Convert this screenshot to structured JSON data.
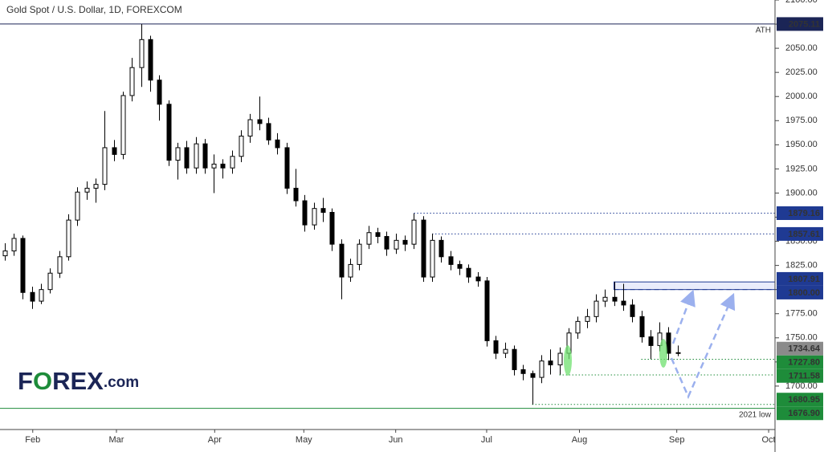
{
  "chart_data": {
    "type": "candlestick",
    "title": "Gold Spot / U.S. Dollar, 1D, FOREXCOM",
    "logo": [
      "F",
      "O",
      "REX",
      ".com"
    ],
    "up_color": "#ffffff",
    "down_color": "#000000",
    "ohlc": [
      [
        1835,
        1848,
        1830,
        1840
      ],
      [
        1840,
        1858,
        1835,
        1853
      ],
      [
        1853,
        1856,
        1790,
        1797
      ],
      [
        1797,
        1803,
        1780,
        1788
      ],
      [
        1788,
        1806,
        1785,
        1800
      ],
      [
        1800,
        1822,
        1796,
        1817
      ],
      [
        1817,
        1840,
        1812,
        1834
      ],
      [
        1834,
        1878,
        1830,
        1872
      ],
      [
        1872,
        1906,
        1866,
        1901
      ],
      [
        1901,
        1912,
        1893,
        1905
      ],
      [
        1905,
        1915,
        1890,
        1909
      ],
      [
        1909,
        1985,
        1903,
        1947
      ],
      [
        1947,
        1955,
        1933,
        1940
      ],
      [
        1940,
        2005,
        1935,
        2001
      ],
      [
        2001,
        2040,
        1995,
        2030
      ],
      [
        2030,
        2075,
        2010,
        2059
      ],
      [
        2059,
        2063,
        2005,
        2017
      ],
      [
        2017,
        2022,
        1975,
        1992
      ],
      [
        1992,
        1996,
        1928,
        1934
      ],
      [
        1934,
        1952,
        1914,
        1947
      ],
      [
        1947,
        1954,
        1920,
        1926
      ],
      [
        1926,
        1958,
        1920,
        1951
      ],
      [
        1951,
        1956,
        1920,
        1926
      ],
      [
        1926,
        1940,
        1900,
        1930
      ],
      [
        1930,
        1935,
        1915,
        1926
      ],
      [
        1926,
        1944,
        1920,
        1938
      ],
      [
        1938,
        1965,
        1932,
        1959
      ],
      [
        1959,
        1982,
        1952,
        1976
      ],
      [
        1976,
        2000,
        1965,
        1972
      ],
      [
        1972,
        1978,
        1950,
        1955
      ],
      [
        1955,
        1962,
        1940,
        1947
      ],
      [
        1947,
        1952,
        1899,
        1905
      ],
      [
        1905,
        1925,
        1886,
        1892
      ],
      [
        1892,
        1898,
        1860,
        1867
      ],
      [
        1867,
        1890,
        1862,
        1884
      ],
      [
        1884,
        1895,
        1870,
        1880
      ],
      [
        1880,
        1884,
        1840,
        1847
      ],
      [
        1847,
        1852,
        1790,
        1813
      ],
      [
        1813,
        1832,
        1808,
        1826
      ],
      [
        1826,
        1852,
        1820,
        1847
      ],
      [
        1847,
        1866,
        1842,
        1859
      ],
      [
        1859,
        1864,
        1848,
        1855
      ],
      [
        1855,
        1860,
        1835,
        1842
      ],
      [
        1842,
        1858,
        1837,
        1851
      ],
      [
        1851,
        1856,
        1840,
        1847
      ],
      [
        1847,
        1879,
        1842,
        1872
      ],
      [
        1872,
        1876,
        1808,
        1813
      ],
      [
        1813,
        1858,
        1808,
        1851
      ],
      [
        1851,
        1855,
        1828,
        1834
      ],
      [
        1834,
        1840,
        1820,
        1826
      ],
      [
        1826,
        1830,
        1815,
        1822
      ],
      [
        1822,
        1826,
        1807,
        1813
      ],
      [
        1813,
        1818,
        1803,
        1809
      ],
      [
        1809,
        1813,
        1741,
        1747
      ],
      [
        1747,
        1752,
        1728,
        1734
      ],
      [
        1734,
        1745,
        1729,
        1738
      ],
      [
        1738,
        1742,
        1711,
        1717
      ],
      [
        1717,
        1722,
        1706,
        1713
      ],
      [
        1713,
        1716,
        1681,
        1709
      ],
      [
        1709,
        1732,
        1703,
        1726
      ],
      [
        1726,
        1738,
        1712,
        1722
      ],
      [
        1722,
        1740,
        1712,
        1734
      ],
      [
        1734,
        1760,
        1728,
        1755
      ],
      [
        1755,
        1772,
        1749,
        1767
      ],
      [
        1767,
        1780,
        1760,
        1772
      ],
      [
        1772,
        1795,
        1766,
        1788
      ],
      [
        1788,
        1800,
        1782,
        1792
      ],
      [
        1792,
        1808,
        1783,
        1788
      ],
      [
        1788,
        1806,
        1778,
        1784
      ],
      [
        1784,
        1790,
        1766,
        1772
      ],
      [
        1772,
        1778,
        1745,
        1751
      ],
      [
        1751,
        1758,
        1728,
        1742
      ],
      [
        1742,
        1766,
        1736,
        1755
      ],
      [
        1755,
        1761,
        1727,
        1734
      ],
      [
        1734,
        1742,
        1731,
        1734.64
      ]
    ],
    "xlim": [
      -0.5,
      84.7
    ],
    "xticks": [
      {
        "value": 3.1,
        "label": "Feb"
      },
      {
        "value": 12.3,
        "label": "Mar"
      },
      {
        "value": 23.1,
        "label": "Apr"
      },
      {
        "value": 32.9,
        "label": "May"
      },
      {
        "value": 43.0,
        "label": "Jun"
      },
      {
        "value": 53.0,
        "label": "Jul"
      },
      {
        "value": 63.2,
        "label": "Aug"
      },
      {
        "value": 73.9,
        "label": "Sep"
      },
      {
        "value": 84.0,
        "label": "Oct"
      }
    ],
    "ylim": [
      1655,
      2100
    ],
    "yticks": [
      {
        "value": 1700,
        "label": "1700.00"
      },
      {
        "value": 1725,
        "label": "1725.00"
      },
      {
        "value": 1750,
        "label": "1750.00"
      },
      {
        "value": 1775,
        "label": "1775.00"
      },
      {
        "value": 1800,
        "label": "1800.00"
      },
      {
        "value": 1825,
        "label": "1825.00"
      },
      {
        "value": 1850,
        "label": "1850.00"
      },
      {
        "value": 1875,
        "label": "1875.00"
      },
      {
        "value": 1900,
        "label": "1900.00"
      },
      {
        "value": 1925,
        "label": "1925.00"
      },
      {
        "value": 1950,
        "label": "1950.00"
      },
      {
        "value": 1975,
        "label": "1975.00"
      },
      {
        "value": 2000,
        "label": "2000.00"
      },
      {
        "value": 2025,
        "label": "2025.00"
      },
      {
        "value": 2050,
        "label": "2050.00"
      },
      {
        "value": 2075,
        "label": "2075.00"
      },
      {
        "value": 2100,
        "label": "2100.00"
      }
    ],
    "levels": [
      {
        "value": 2075.11,
        "label": "2075.11",
        "color": "#1b2556",
        "style": "solid",
        "note": "ATH"
      },
      {
        "value": 1879.16,
        "label": "1879.16",
        "color": "#1f3a93",
        "style": "dotted",
        "from": 45
      },
      {
        "value": 1857.61,
        "label": "1857.61",
        "color": "#1f3a93",
        "style": "dotted",
        "from": 47
      },
      {
        "value": 1807.91,
        "label": "1807.91",
        "color": "#1f3a93",
        "style": "box-top",
        "from": 67
      },
      {
        "value": 1800,
        "label": "1800.00",
        "color": "#1f3a93",
        "style": "dashed",
        "from": 67
      },
      {
        "value": 1734.64,
        "label": "1734.64",
        "color": "#8a8a8a",
        "style": "none"
      },
      {
        "value": 1727.8,
        "label": "1727.80",
        "color": "#1e8c3a",
        "style": "dotted",
        "from": 70
      },
      {
        "value": 1711.58,
        "label": "1711.58",
        "color": "#1e8c3a",
        "style": "dotted",
        "from": 61
      },
      {
        "value": 1680.95,
        "label": "1680.95",
        "color": "#1e8c3a",
        "style": "dotted",
        "from": 58
      },
      {
        "value": 1676.9,
        "label": "1676.90",
        "color": "#1e8c3a",
        "style": "solid",
        "note": "2021 low"
      }
    ]
  }
}
